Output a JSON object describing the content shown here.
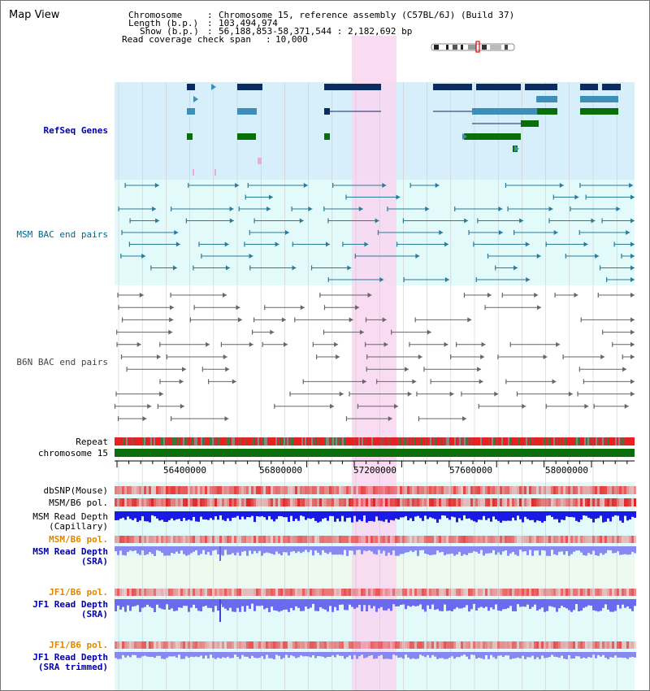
{
  "view": {
    "title": "Map View",
    "info": {
      "chromosome_key": "Chromosome",
      "chromosome_value": "Chromosome 15, reference assembly (C57BL/6J) (Build 37)",
      "length_key": "Length (b.p.)",
      "length_value": "103,494,974",
      "show_key": "Show (b.p.)",
      "show_value": "56,188,853-58,371,544 : 2,182,692 bp",
      "coverage_key": "Read coverage check span",
      "coverage_value": "10,000"
    }
  },
  "tracks": {
    "refseq": {
      "label": "RefSeq Genes",
      "color": "#0000aa"
    },
    "msm_bac": {
      "label": "MSM BAC end pairs",
      "color": "#006688"
    },
    "b6n_bac": {
      "label": "B6N BAC end pairs",
      "color": "#444444"
    },
    "repeat": {
      "label": "Repeat",
      "color": "#000000"
    },
    "chromosome": {
      "label": "chromosome 15",
      "color": "#000000"
    },
    "dbsnp": {
      "label": "dbSNP(Mouse)",
      "color": "#000000"
    },
    "msm_b6_pol": {
      "label": "MSM/B6 pol.",
      "color": "#000000"
    },
    "msm_depth_cap": {
      "label1": "MSM Read Depth",
      "label2": "(Capillary)",
      "color": "#000000"
    },
    "msm_b6_pol_sra": {
      "label": "MSM/B6 pol.",
      "color": "#dd8800"
    },
    "msm_depth_sra": {
      "label1": "MSM Read Depth",
      "label2": "(SRA)",
      "color": "#0000aa"
    },
    "jf1_b6_pol": {
      "label": "JF1/B6 pol.",
      "color": "#dd8800"
    },
    "jf1_depth_sra": {
      "label1": "JF1 Read Depth",
      "label2": "(SRA)",
      "color": "#0000aa"
    },
    "jf1_b6_pol_trim": {
      "label": "JF1/B6 pol.",
      "color": "#dd8800"
    },
    "jf1_depth_trim": {
      "label1": "JF1 Read Depth",
      "label2": "(SRA trimmed)",
      "color": "#0000aa"
    }
  },
  "axis": {
    "ticks": [
      "56400000",
      "56800000",
      "57200000",
      "57600000",
      "58000000"
    ]
  },
  "colors": {
    "refseq_bg": "#d6effa",
    "msm_bg": "#e2fafa",
    "depth_bg": "#e2fafa",
    "highlight": "#f9d6f0",
    "gene_dark": "#0b2c5e",
    "gene_mid": "#3e8fb8",
    "gene_green": "#0a6e0a",
    "chromosome_bar": "#0a6e0a",
    "depth_blue": "#1a1ae6",
    "depth_light": "#8888f0"
  }
}
